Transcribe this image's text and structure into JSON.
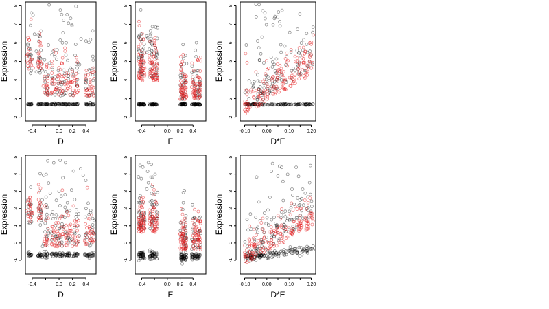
{
  "chart_data": [
    {
      "type": "scatter",
      "xlabel": "D",
      "ylabel": "Expression",
      "xlim": [
        -0.5,
        0.55
      ],
      "ylim": [
        1.8,
        8.2
      ],
      "xticks": [
        -0.4,
        -0.2,
        0.0,
        0.2,
        0.4
      ],
      "xtick_labels": [
        "-0.4",
        "0.0",
        "0.2",
        "0.4"
      ],
      "xtick_label_at": [
        -0.4,
        0.0,
        0.2,
        0.4
      ],
      "yticks": [
        2,
        3,
        4,
        5,
        6,
        7,
        8
      ],
      "ytick_labels": [
        "2",
        "3",
        "4",
        "5",
        "6",
        "7",
        "8"
      ],
      "series": [
        {
          "color": "#000000"
        },
        {
          "color": "#e31a1c"
        }
      ],
      "seed": 11,
      "pattern": "D_top"
    },
    {
      "type": "scatter",
      "xlabel": "E",
      "ylabel": "Expression",
      "xlim": [
        -0.5,
        0.6
      ],
      "ylim": [
        1.8,
        8.2
      ],
      "xticks": [
        -0.4,
        -0.2,
        0.0,
        0.2,
        0.4
      ],
      "xtick_labels": [
        "-0.4",
        "0.0",
        "0.2",
        "0.4"
      ],
      "xtick_label_at": [
        -0.4,
        0.0,
        0.2,
        0.4
      ],
      "yticks": [
        2,
        3,
        4,
        5,
        6,
        7,
        8
      ],
      "ytick_labels": [
        "2",
        "3",
        "4",
        "5",
        "6",
        "7",
        "8"
      ],
      "series": [
        {
          "color": "#000000"
        },
        {
          "color": "#e31a1c"
        }
      ],
      "seed": 22,
      "pattern": "E_top"
    },
    {
      "type": "scatter",
      "xlabel": "D*E",
      "ylabel": "Expression",
      "xlim": [
        -0.12,
        0.22
      ],
      "ylim": [
        1.8,
        8.2
      ],
      "xticks": [
        -0.1,
        -0.05,
        0.0,
        0.05,
        0.1,
        0.15,
        0.2
      ],
      "xtick_labels": [
        "-0.10",
        "0.00",
        "0.10",
        "0.20"
      ],
      "xtick_label_at": [
        -0.1,
        0.0,
        0.1,
        0.2
      ],
      "yticks": [
        2,
        3,
        4,
        5,
        6,
        7,
        8
      ],
      "ytick_labels": [
        "2",
        "3",
        "4",
        "5",
        "6",
        "7",
        "8"
      ],
      "series": [
        {
          "color": "#000000"
        },
        {
          "color": "#e31a1c"
        }
      ],
      "seed": 33,
      "pattern": "DE_top"
    },
    {
      "type": "scatter",
      "xlabel": "D",
      "ylabel": "Expression",
      "xlim": [
        -0.5,
        0.55
      ],
      "ylim": [
        -1.8,
        5.1
      ],
      "xticks": [
        -0.4,
        -0.2,
        0.0,
        0.2,
        0.4
      ],
      "xtick_labels": [
        "-0.4",
        "0.0",
        "0.2",
        "0.4"
      ],
      "xtick_label_at": [
        -0.4,
        0.0,
        0.2,
        0.4
      ],
      "yticks": [
        -1,
        0,
        1,
        2,
        3,
        4,
        5
      ],
      "ytick_labels": [
        "-1",
        "0",
        "1",
        "2",
        "3",
        "4",
        "5"
      ],
      "series": [
        {
          "color": "#000000"
        },
        {
          "color": "#e31a1c"
        }
      ],
      "seed": 44,
      "pattern": "D_bot"
    },
    {
      "type": "scatter",
      "xlabel": "E",
      "ylabel": "Expression",
      "xlim": [
        -0.5,
        0.6
      ],
      "ylim": [
        -1.8,
        5.1
      ],
      "xticks": [
        -0.4,
        -0.2,
        0.0,
        0.2,
        0.4
      ],
      "xtick_labels": [
        "-0.4",
        "0.0",
        "0.2",
        "0.4"
      ],
      "xtick_label_at": [
        -0.4,
        0.0,
        0.2,
        0.4
      ],
      "yticks": [
        -1,
        0,
        1,
        2,
        3,
        4,
        5
      ],
      "ytick_labels": [
        "-1",
        "0",
        "1",
        "2",
        "3",
        "4",
        "5"
      ],
      "series": [
        {
          "color": "#000000"
        },
        {
          "color": "#e31a1c"
        }
      ],
      "seed": 55,
      "pattern": "E_bot"
    },
    {
      "type": "scatter",
      "xlabel": "D*E",
      "ylabel": "Expression",
      "xlim": [
        -0.12,
        0.22
      ],
      "ylim": [
        -1.8,
        5.1
      ],
      "xticks": [
        -0.1,
        -0.05,
        0.0,
        0.05,
        0.1,
        0.15,
        0.2
      ],
      "xtick_labels": [
        "-0.10",
        "0.00",
        "0.10",
        "0.20"
      ],
      "xtick_label_at": [
        -0.1,
        0.0,
        0.1,
        0.2
      ],
      "yticks": [
        -1,
        0,
        1,
        2,
        3,
        4,
        5
      ],
      "ytick_labels": [
        "-1",
        "0",
        "1",
        "2",
        "3",
        "4",
        "5"
      ],
      "series": [
        {
          "color": "#000000"
        },
        {
          "color": "#e31a1c"
        }
      ],
      "seed": 66,
      "pattern": "DE_bot"
    }
  ]
}
